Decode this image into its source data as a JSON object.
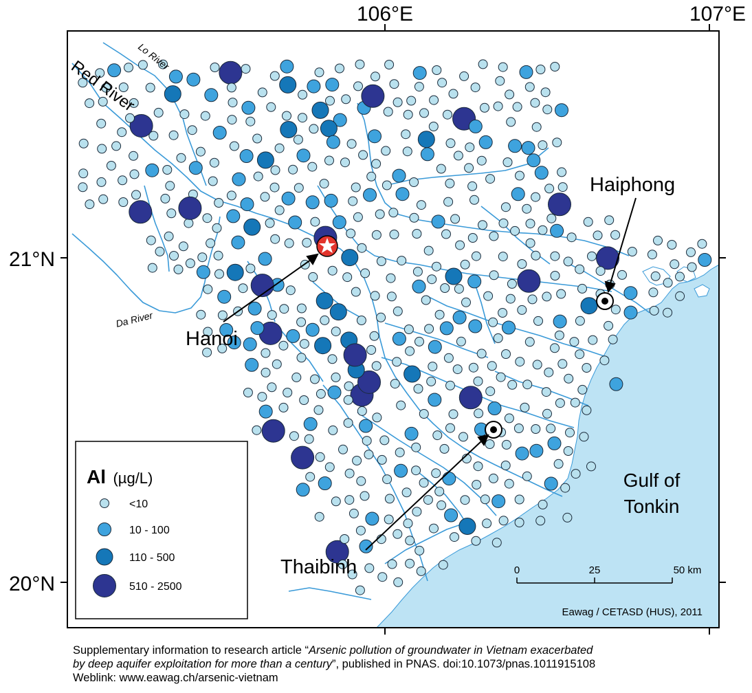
{
  "map": {
    "axes": {
      "lon_ticks": [
        {
          "value": 106,
          "label": "106°E"
        },
        {
          "value": 107,
          "label": "107°E"
        }
      ],
      "lat_ticks": [
        {
          "value": 21,
          "label": "21°N"
        },
        {
          "value": 20,
          "label": "20°N"
        }
      ]
    },
    "places": {
      "hanoi": "Hanoi",
      "haiphong": "Haiphong",
      "thaibinh": "Thaibinh"
    },
    "rivers": {
      "red_river": "Red River",
      "lo_river": "Lo River",
      "da_river": "Da River"
    },
    "sea": {
      "line1": "Gulf of",
      "line2": "Tonkin"
    },
    "legend": {
      "title": "Al",
      "unit": "(µg/L)",
      "classes": [
        {
          "label": "<10",
          "color": "#b9e1ee"
        },
        {
          "label": "10 - 100",
          "color": "#3ea3de"
        },
        {
          "label": "110 - 500",
          "color": "#1577b8"
        },
        {
          "label": "510 - 2500",
          "color": "#2d3591"
        }
      ]
    },
    "scalebar": {
      "labels": [
        "0",
        "25",
        "50 km"
      ]
    },
    "credit": "Eawag / CETASD (HUS), 2011",
    "colors": {
      "sea": "#bde3f4",
      "river": "#3a9ad8",
      "hanoi_marker": "#e2342c"
    }
  },
  "caption": {
    "line1_prefix": "Supplementary information to research article “",
    "line1_italic": "Arsenic pollution of groundwater in Vietnam exacerbated",
    "line2_italic": "by deep aquifer exploitation for more than a century",
    "line2_suffix": "”, published in PNAS. doi:10.1073/pnas.1011915108",
    "line3": "Weblink: www.eawag.ch/arsenic-vietnam"
  }
}
